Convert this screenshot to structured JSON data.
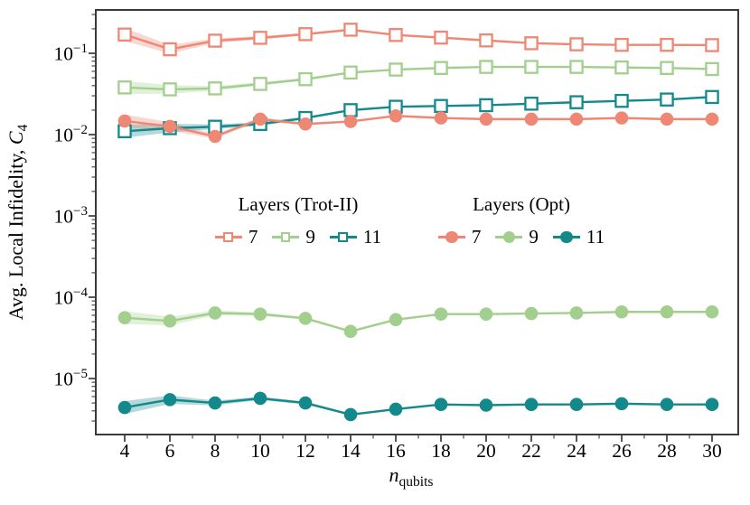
{
  "figure": {
    "background": "#ffffff",
    "frame_color": "#3a3a3a",
    "text_color": "#000000",
    "accent_colors": {
      "salmon": "#EE8774",
      "green": "#A2CF8D",
      "teal": "#13898C"
    }
  },
  "axes": {
    "ylabel": {
      "prefix": "Avg. Local Infidelity, ",
      "variable": "C",
      "subscript": "4"
    },
    "xlabel": {
      "variable": "n",
      "subscript": "qubits"
    },
    "x_ticks": [
      4,
      6,
      8,
      10,
      12,
      14,
      16,
      18,
      20,
      22,
      24,
      26,
      28,
      30
    ],
    "y_tick_exponents": [
      -1,
      -2,
      -3,
      -4,
      -5
    ]
  },
  "legend": {
    "groups": [
      {
        "title": "Layers (Trot-II)",
        "marker": "open-square",
        "entries": [
          {
            "label": "7",
            "color": "#EE8774"
          },
          {
            "label": "9",
            "color": "#A2CF8D"
          },
          {
            "label": "11",
            "color": "#13898C"
          }
        ]
      },
      {
        "title": "Layers (Opt)",
        "marker": "circle",
        "entries": [
          {
            "label": "7",
            "color": "#EE8774"
          },
          {
            "label": "9",
            "color": "#A2CF8D"
          },
          {
            "label": "11",
            "color": "#13898C"
          }
        ]
      }
    ]
  },
  "chart_data": {
    "type": "line",
    "title": "",
    "xlabel": "n_qubits",
    "ylabel": "Avg. Local Infidelity, C_4",
    "y_scale": "log",
    "grid": false,
    "legend_position": "center-inside",
    "x_axis_range": [
      2.7,
      31.2
    ],
    "y_axis_range": [
      2e-06,
      0.34
    ],
    "x": [
      4,
      6,
      8,
      10,
      12,
      14,
      16,
      18,
      20,
      22,
      24,
      26,
      28,
      30
    ],
    "series": [
      {
        "name": "Layers (Trot-II) 7",
        "group": "Trot-II",
        "layers": 7,
        "marker": "open-square",
        "color": "#EE8774",
        "values": [
          0.17,
          0.112,
          0.143,
          0.155,
          0.172,
          0.195,
          0.168,
          0.156,
          0.144,
          0.133,
          0.129,
          0.127,
          0.127,
          0.126
        ]
      },
      {
        "name": "Layers (Trot-II) 9",
        "group": "Trot-II",
        "layers": 9,
        "marker": "open-square",
        "color": "#A2CF8D",
        "values": [
          0.038,
          0.036,
          0.037,
          0.042,
          0.048,
          0.058,
          0.063,
          0.066,
          0.068,
          0.068,
          0.068,
          0.067,
          0.066,
          0.064
        ]
      },
      {
        "name": "Layers (Trot-II) 11",
        "group": "Trot-II",
        "layers": 11,
        "marker": "open-square",
        "color": "#13898C",
        "values": [
          0.011,
          0.012,
          0.0125,
          0.0135,
          0.016,
          0.02,
          0.022,
          0.0225,
          0.023,
          0.024,
          0.025,
          0.026,
          0.027,
          0.029
        ]
      },
      {
        "name": "Layers (Opt) 7",
        "group": "Opt",
        "layers": 7,
        "marker": "circle",
        "color": "#EE8774",
        "values": [
          0.0147,
          0.0126,
          0.0095,
          0.0155,
          0.0135,
          0.0145,
          0.017,
          0.016,
          0.0155,
          0.0155,
          0.0155,
          0.016,
          0.0155,
          0.0155
        ]
      },
      {
        "name": "Layers (Opt) 9",
        "group": "Opt",
        "layers": 9,
        "marker": "circle",
        "color": "#A2CF8D",
        "values": [
          5.6e-05,
          5.1e-05,
          6.4e-05,
          6.2e-05,
          5.5e-05,
          3.8e-05,
          5.3e-05,
          6.2e-05,
          6.2e-05,
          6.3e-05,
          6.4e-05,
          6.6e-05,
          6.6e-05,
          6.6e-05
        ]
      },
      {
        "name": "Layers (Opt) 11",
        "group": "Opt",
        "layers": 11,
        "marker": "circle",
        "color": "#13898C",
        "values": [
          4.4e-06,
          5.5e-06,
          5e-06,
          5.7e-06,
          5e-06,
          3.6e-06,
          4.2e-06,
          4.8e-06,
          4.7e-06,
          4.8e-06,
          4.8e-06,
          4.9e-06,
          4.8e-06,
          4.8e-06
        ]
      }
    ],
    "band_rel": [
      0.2,
      0.13,
      0.07,
      0.05,
      0.04,
      0.03,
      0.025,
      0.02,
      0.02,
      0.02,
      0.02,
      0.02,
      0.02,
      0.02
    ]
  }
}
